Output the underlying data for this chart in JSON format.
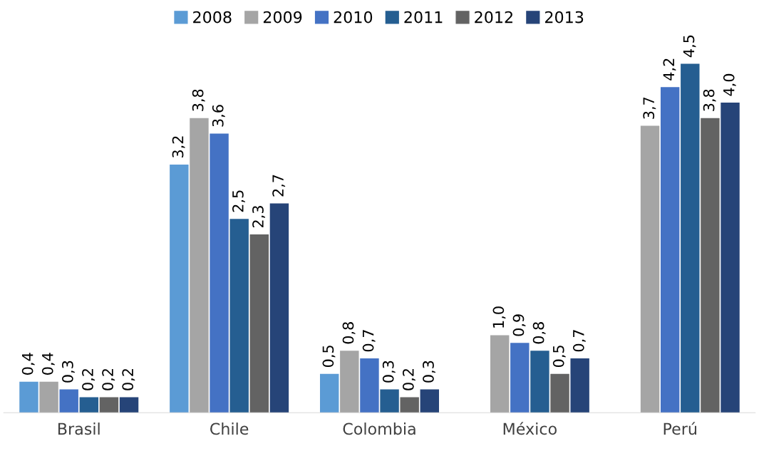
{
  "chart_data": {
    "type": "bar",
    "categories": [
      "Brasil",
      "Chile",
      "Colombia",
      "México",
      "Perú"
    ],
    "series": [
      {
        "name": "2008",
        "color": "#5b9bd5",
        "values": [
          0.4,
          3.2,
          0.5,
          null,
          null
        ],
        "value_labels": [
          "0,4",
          "3,2",
          "0,5",
          null,
          null
        ]
      },
      {
        "name": "2009",
        "color": "#a5a5a5",
        "values": [
          0.4,
          3.8,
          0.8,
          1.0,
          3.7
        ],
        "value_labels": [
          "0,4",
          "3,8",
          "0,8",
          "1,0",
          "3,7"
        ]
      },
      {
        "name": "2010",
        "color": "#4472c4",
        "values": [
          0.3,
          3.6,
          0.7,
          0.9,
          4.2
        ],
        "value_labels": [
          "0,3",
          "3,6",
          "0,7",
          "0,9",
          "4,2"
        ]
      },
      {
        "name": "2011",
        "color": "#255e91",
        "values": [
          0.2,
          2.5,
          0.3,
          0.8,
          4.5
        ],
        "value_labels": [
          "0,2",
          "2,5",
          "0,3",
          "0,8",
          "4,5"
        ]
      },
      {
        "name": "2012",
        "color": "#636363",
        "values": [
          0.2,
          2.3,
          0.2,
          0.5,
          3.8
        ],
        "value_labels": [
          "0,2",
          "2,3",
          "0,2",
          "0,5",
          "3,8"
        ]
      },
      {
        "name": "2013",
        "color": "#264478",
        "values": [
          0.2,
          2.7,
          0.3,
          0.7,
          4.0
        ],
        "value_labels": [
          "0,2",
          "2,7",
          "0,3",
          "0,7",
          "4,0"
        ]
      }
    ],
    "legend": "top"
  }
}
